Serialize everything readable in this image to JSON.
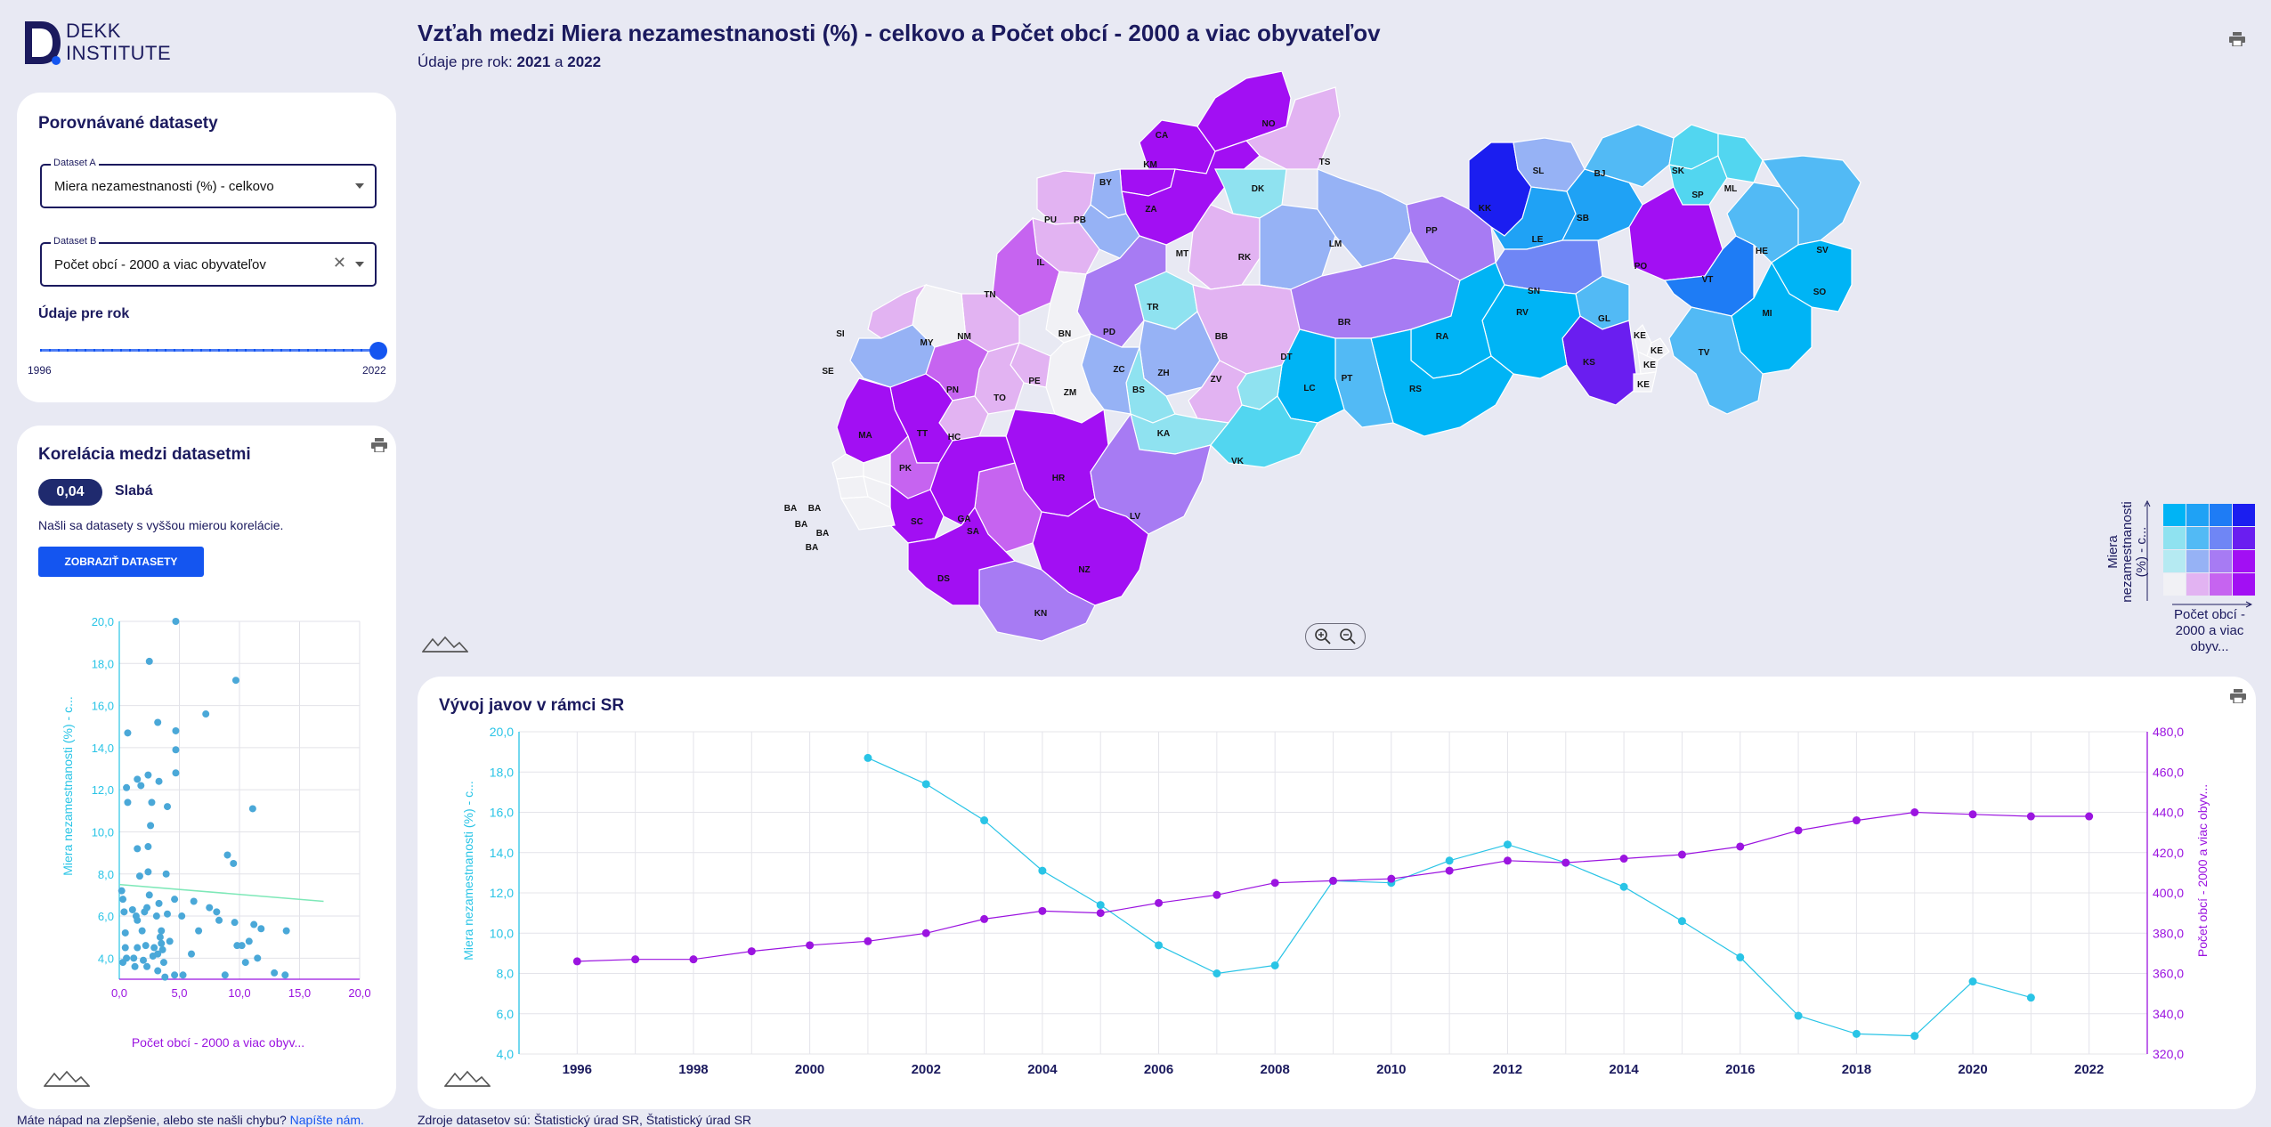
{
  "brand": {
    "logo_line1": "DEKK",
    "logo_line2": "INSTITUTE"
  },
  "header": {
    "title": "Vzťah medzi Miera nezamestnanosti (%) - celkovo a Počet obcí - 2000 a viac obyvateľov",
    "subtitle_prefix": "Údaje pre rok: ",
    "year_a": "2021",
    "subtitle_and": " a ",
    "year_b": "2022"
  },
  "datasets_panel": {
    "title": "Porovnávané datasety",
    "dataset_a_label": "Dataset A",
    "dataset_a_value": "Miera nezamestnanosti (%) - celkovo",
    "dataset_b_label": "Dataset B",
    "dataset_b_value": "Počet obcí - 2000 a viac obyvateľov",
    "clear_symbol": "✕",
    "year_heading": "Údaje pre rok",
    "slider_min": "1996",
    "slider_max": "2022",
    "slider_value": 2022
  },
  "correlation_panel": {
    "title": "Korelácia medzi datasetmi",
    "value": "0,04",
    "strength": "Slabá",
    "note": "Našli sa datasety s vyššou mierou korelácie.",
    "button_label": "ZOBRAZIŤ DATASETY"
  },
  "scatter": {
    "xlabel": "Počet obcí - 2000 a viac obyv...",
    "ylabel": "Miera nezamestnanosti (%) - c...",
    "x_ticks": [
      "0,0",
      "5,0",
      "10,0",
      "15,0",
      "20,0"
    ],
    "y_ticks": [
      "4,0",
      "6,0",
      "8,0",
      "10,0",
      "12,0",
      "14,0",
      "16,0",
      "18,0",
      "20,0"
    ],
    "xlim": [
      0,
      20
    ],
    "ylim": [
      3,
      20
    ],
    "trend": [
      [
        0,
        7.5
      ],
      [
        17,
        6.7
      ]
    ],
    "points": [
      [
        0.2,
        7.2
      ],
      [
        0.3,
        6.8
      ],
      [
        0.4,
        6.2
      ],
      [
        0.5,
        5.2
      ],
      [
        0.5,
        4.5
      ],
      [
        0.6,
        4.0
      ],
      [
        0.3,
        3.8
      ],
      [
        0.7,
        11.4
      ],
      [
        0.6,
        12.1
      ],
      [
        0.7,
        14.7
      ],
      [
        1.1,
        6.3
      ],
      [
        1.2,
        4.0
      ],
      [
        1.3,
        3.6
      ],
      [
        1.4,
        6.0
      ],
      [
        1.5,
        5.8
      ],
      [
        1.5,
        4.5
      ],
      [
        1.5,
        9.2
      ],
      [
        1.5,
        12.5
      ],
      [
        1.7,
        7.9
      ],
      [
        1.8,
        12.2
      ],
      [
        1.9,
        5.3
      ],
      [
        2.0,
        3.9
      ],
      [
        2.1,
        6.2
      ],
      [
        2.2,
        4.6
      ],
      [
        2.3,
        3.6
      ],
      [
        2.3,
        6.4
      ],
      [
        2.4,
        8.1
      ],
      [
        2.4,
        12.7
      ],
      [
        2.4,
        9.3
      ],
      [
        2.5,
        7.0
      ],
      [
        2.5,
        18.1
      ],
      [
        2.6,
        10.3
      ],
      [
        2.7,
        11.4
      ],
      [
        2.8,
        4.1
      ],
      [
        2.9,
        4.5
      ],
      [
        3.1,
        6.0
      ],
      [
        3.2,
        3.4
      ],
      [
        3.2,
        4.2
      ],
      [
        3.2,
        15.2
      ],
      [
        3.3,
        6.6
      ],
      [
        3.3,
        12.4
      ],
      [
        3.4,
        5.0
      ],
      [
        3.5,
        5.3
      ],
      [
        3.5,
        4.7
      ],
      [
        3.6,
        4.4
      ],
      [
        3.7,
        3.8
      ],
      [
        3.8,
        3.1
      ],
      [
        3.9,
        8.0
      ],
      [
        4.0,
        11.2
      ],
      [
        4.0,
        6.1
      ],
      [
        4.2,
        4.8
      ],
      [
        4.6,
        3.2
      ],
      [
        4.6,
        6.8
      ],
      [
        4.7,
        14.8
      ],
      [
        4.7,
        12.8
      ],
      [
        4.7,
        13.9
      ],
      [
        4.7,
        20.0
      ],
      [
        5.2,
        6.0
      ],
      [
        5.3,
        3.2
      ],
      [
        6.0,
        4.2
      ],
      [
        6.2,
        6.7
      ],
      [
        6.6,
        5.3
      ],
      [
        7.2,
        15.6
      ],
      [
        7.5,
        6.4
      ],
      [
        8.1,
        6.2
      ],
      [
        8.3,
        5.8
      ],
      [
        8.8,
        3.2
      ],
      [
        9.0,
        8.9
      ],
      [
        9.5,
        8.5
      ],
      [
        9.6,
        5.7
      ],
      [
        9.7,
        17.2
      ],
      [
        9.8,
        4.6
      ],
      [
        10.2,
        4.6
      ],
      [
        10.5,
        3.8
      ],
      [
        10.8,
        4.8
      ],
      [
        11.1,
        11.1
      ],
      [
        11.2,
        5.6
      ],
      [
        11.5,
        4.0
      ],
      [
        11.8,
        5.4
      ],
      [
        12.9,
        3.3
      ],
      [
        13.8,
        3.2
      ],
      [
        13.9,
        5.3
      ]
    ]
  },
  "trend_panel": {
    "title": "Vývoj javov v rámci SR",
    "ylabel_left": "Miera nezamestnanosti (%) - c...",
    "ylabel_right": "Počet obcí - 2000 a viac obyv...",
    "x_ticks": [
      "1996",
      "1998",
      "2000",
      "2002",
      "2004",
      "2006",
      "2008",
      "2010",
      "2012",
      "2014",
      "2016",
      "2018",
      "2020",
      "2022"
    ],
    "y_left_ticks": [
      "4,0",
      "6,0",
      "8,0",
      "10,0",
      "12,0",
      "14,0",
      "16,0",
      "18,0",
      "20,0"
    ],
    "y_right_ticks": [
      "320,0",
      "340,0",
      "360,0",
      "380,0",
      "400,0",
      "420,0",
      "440,0",
      "460,0",
      "480,0"
    ]
  },
  "chart_data": {
    "type": "line",
    "x": [
      1996,
      1997,
      1998,
      1999,
      2000,
      2001,
      2002,
      2003,
      2004,
      2005,
      2006,
      2007,
      2008,
      2009,
      2010,
      2011,
      2012,
      2013,
      2014,
      2015,
      2016,
      2017,
      2018,
      2019,
      2020,
      2021,
      2022
    ],
    "series": [
      {
        "name": "Miera nezamestnanosti (%) - c...",
        "axis": "left",
        "color": "#29c4e6",
        "values": [
          null,
          null,
          null,
          null,
          null,
          18.7,
          17.4,
          15.6,
          13.1,
          11.4,
          9.4,
          8.0,
          8.4,
          12.6,
          12.5,
          13.6,
          14.4,
          13.5,
          12.3,
          10.6,
          8.8,
          5.9,
          5.0,
          4.9,
          7.6,
          6.8,
          null
        ]
      },
      {
        "name": "Počet obcí - 2000 a viac obyv...",
        "axis": "right",
        "color": "#9b14e0",
        "values": [
          366,
          367,
          367,
          371,
          374,
          376,
          380,
          387,
          391,
          390,
          395,
          399,
          405,
          406,
          407,
          411,
          416,
          415,
          417,
          419,
          423,
          431,
          436,
          440,
          439,
          438,
          438
        ]
      }
    ],
    "ylim_left": [
      4,
      20
    ],
    "ylim_right": [
      320,
      480
    ],
    "grid": true
  },
  "map": {
    "regions": [
      {
        "code": "BA",
        "fill": "#f1f1f5"
      },
      {
        "code": "BB",
        "fill": "#e2b3f2"
      },
      {
        "code": "BJ",
        "fill": "#52baf5"
      },
      {
        "code": "BN",
        "fill": "#f1f1f5"
      },
      {
        "code": "BR",
        "fill": "#a77bf3"
      },
      {
        "code": "BS",
        "fill": "#8fe2f0"
      },
      {
        "code": "BY",
        "fill": "#96b2f5"
      },
      {
        "code": "CA",
        "fill": "#a20ff3"
      },
      {
        "code": "DK",
        "fill": "#8fe2f0"
      },
      {
        "code": "DS",
        "fill": "#a20ff3"
      },
      {
        "code": "DT",
        "fill": "#8fe2f0"
      },
      {
        "code": "GA",
        "fill": "#a20ff3"
      },
      {
        "code": "GL",
        "fill": "#52baf5"
      },
      {
        "code": "HC",
        "fill": "#e2b3f2"
      },
      {
        "code": "HE",
        "fill": "#52baf5"
      },
      {
        "code": "HR",
        "fill": "#a20ff3"
      },
      {
        "code": "IL",
        "fill": "#e2b3f2"
      },
      {
        "code": "KA",
        "fill": "#8fe2f0"
      },
      {
        "code": "KE",
        "fill": "#f1f1f5"
      },
      {
        "code": "KK",
        "fill": "#1b1ef0"
      },
      {
        "code": "KM",
        "fill": "#a20ff3"
      },
      {
        "code": "KN",
        "fill": "#a77bf3"
      },
      {
        "code": "KS",
        "fill": "#6a1ef0"
      },
      {
        "code": "LC",
        "fill": "#00b4f5"
      },
      {
        "code": "LE",
        "fill": "#1fa2f5"
      },
      {
        "code": "LM",
        "fill": "#96b2f5"
      },
      {
        "code": "LV",
        "fill": "#a77bf3"
      },
      {
        "code": "MA",
        "fill": "#a20ff3"
      },
      {
        "code": "MI",
        "fill": "#00b4f5"
      },
      {
        "code": "ML",
        "fill": "#52d6f0"
      },
      {
        "code": "MT",
        "fill": "#e2b3f2"
      },
      {
        "code": "MY",
        "fill": "#f1f1f5"
      },
      {
        "code": "NM",
        "fill": "#e2b3f2"
      },
      {
        "code": "NO",
        "fill": "#a20ff3"
      },
      {
        "code": "NZ",
        "fill": "#a20ff3"
      },
      {
        "code": "PB",
        "fill": "#96b2f5"
      },
      {
        "code": "PD",
        "fill": "#a77bf3"
      },
      {
        "code": "PE",
        "fill": "#e2b3f2"
      },
      {
        "code": "PK",
        "fill": "#c664f0"
      },
      {
        "code": "PN",
        "fill": "#c664f0"
      },
      {
        "code": "PO",
        "fill": "#a20ff3"
      },
      {
        "code": "PP",
        "fill": "#a77bf3"
      },
      {
        "code": "PT",
        "fill": "#52baf5"
      },
      {
        "code": "PU",
        "fill": "#e2b3f2"
      },
      {
        "code": "RA",
        "fill": "#00b4f5"
      },
      {
        "code": "RK",
        "fill": "#96b2f5"
      },
      {
        "code": "RS",
        "fill": "#00b4f5"
      },
      {
        "code": "RV",
        "fill": "#00b4f5"
      },
      {
        "code": "SA",
        "fill": "#c664f0"
      },
      {
        "code": "SB",
        "fill": "#1fa2f5"
      },
      {
        "code": "SC",
        "fill": "#a20ff3"
      },
      {
        "code": "SE",
        "fill": "#96b2f5"
      },
      {
        "code": "SI",
        "fill": "#e2b3f2"
      },
      {
        "code": "SK",
        "fill": "#52d6f0"
      },
      {
        "code": "SL",
        "fill": "#96b2f5"
      },
      {
        "code": "SN",
        "fill": "#6f86f5"
      },
      {
        "code": "SO",
        "fill": "#00b4f5"
      },
      {
        "code": "SP",
        "fill": "#52d6f0"
      },
      {
        "code": "SV",
        "fill": "#52baf5"
      },
      {
        "code": "TN",
        "fill": "#c664f0"
      },
      {
        "code": "TO",
        "fill": "#e2b3f2"
      },
      {
        "code": "TR",
        "fill": "#8fe2f0"
      },
      {
        "code": "TS",
        "fill": "#e2b3f2"
      },
      {
        "code": "TT",
        "fill": "#a20ff3"
      },
      {
        "code": "TV",
        "fill": "#52baf5"
      },
      {
        "code": "VK",
        "fill": "#52d6f0"
      },
      {
        "code": "VT",
        "fill": "#1e7cf5"
      },
      {
        "code": "ZA",
        "fill": "#a20ff3"
      },
      {
        "code": "ZC",
        "fill": "#96b2f5"
      },
      {
        "code": "ZH",
        "fill": "#96b2f5"
      },
      {
        "code": "ZM",
        "fill": "#f1f1f5"
      },
      {
        "code": "ZV",
        "fill": "#e2b3f2"
      }
    ],
    "legend_colors": [
      [
        "#00b4f5",
        "#1fa2f5",
        "#1e7cf5",
        "#1b1ef0"
      ],
      [
        "#8fe2f0",
        "#52baf5",
        "#6f86f5",
        "#6a1ef0"
      ],
      [
        "#b5eaf2",
        "#96b2f5",
        "#a77bf3",
        "#a20ff3"
      ],
      [
        "#f1f1f5",
        "#e2b3f2",
        "#c664f0",
        "#a20ff3"
      ]
    ],
    "legend_ylabel_lines": [
      "Miera",
      "nezamestnanosti",
      "(%) - c..."
    ],
    "legend_xlabel_lines": [
      "Počet obcí -",
      "2000 a viac",
      "obyv..."
    ]
  },
  "footer": {
    "feedback_prefix": "Máte nápad na zlepšenie, alebo ste našli chybu? ",
    "feedback_link": "Napíšte nám.",
    "sources": "Zdroje datasetov sú: Štatistický úrad SR, Štatistický úrad SR"
  },
  "colors": {
    "accent": "#1455f0",
    "navy": "#1b1a5e",
    "series_a": "#29c4e6",
    "series_b": "#9b14e0",
    "scatter_point": "#4aa8d8",
    "trendline": "#7ee8b8"
  }
}
